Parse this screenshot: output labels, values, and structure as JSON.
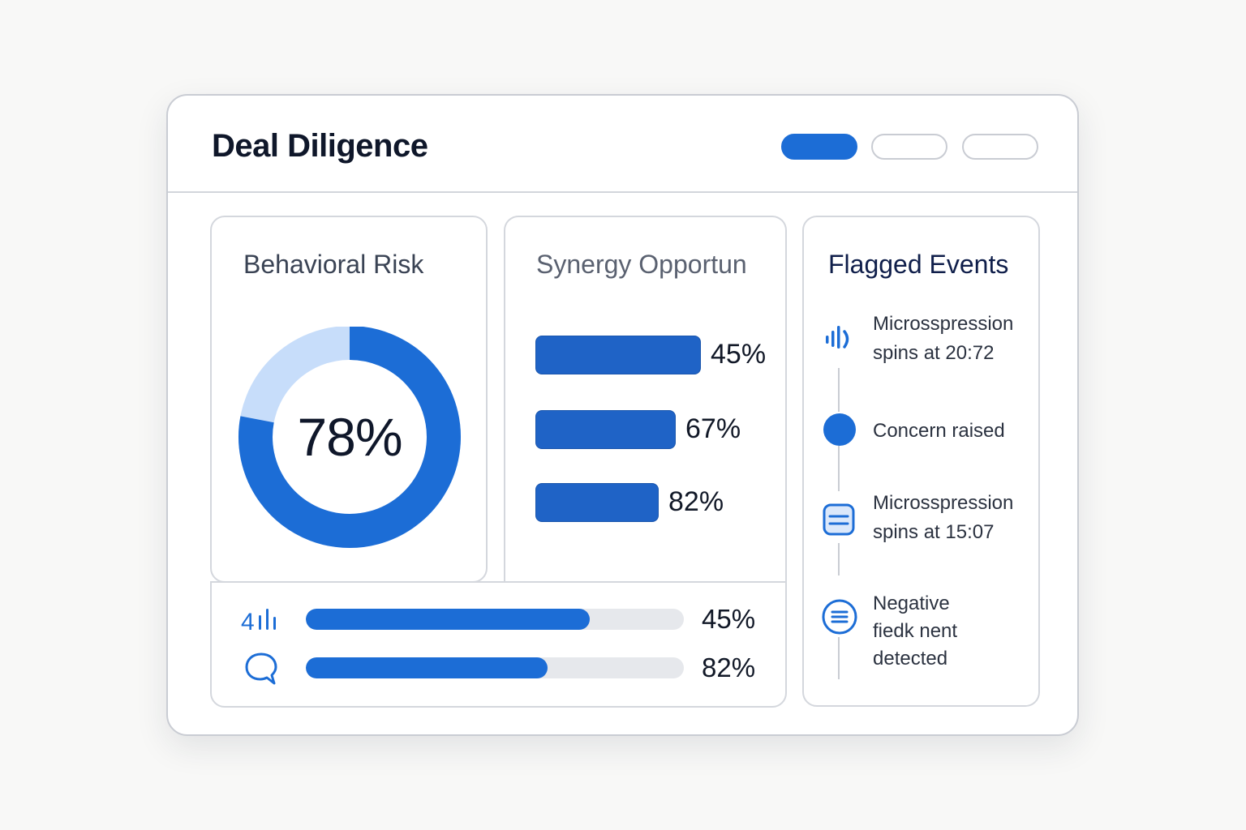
{
  "header": {
    "title": "Deal Diligence",
    "tabs": [
      {
        "state": "active"
      },
      {
        "state": "inactive"
      },
      {
        "state": "inactive"
      }
    ]
  },
  "behavioral_risk": {
    "title": "Behavioral Risk",
    "value_label": "78%",
    "value": 78,
    "colors": {
      "primary": "#1c6dd6",
      "secondary": "#c7ddfa"
    }
  },
  "synergy": {
    "title": "Synergy Opportun",
    "bars": [
      {
        "value": 45,
        "label": "45%"
      },
      {
        "value": 67,
        "label": "67%"
      },
      {
        "value": 82,
        "label": "82%"
      }
    ]
  },
  "metrics": [
    {
      "icon": "audio-level-icon",
      "icon_text": "4",
      "value": 75,
      "label": "45%"
    },
    {
      "icon": "chat-bubble-icon",
      "value": 64,
      "label": "82%"
    }
  ],
  "flagged_events": {
    "title": "Flagged Events",
    "items": [
      {
        "icon": "waveform-icon",
        "lines": [
          "Microsspression",
          "spins at 20:72"
        ]
      },
      {
        "icon": "dot-icon",
        "lines": [
          "Concern raised"
        ]
      },
      {
        "icon": "document-icon",
        "lines": [
          "Microsspression",
          "spins at 15:07"
        ]
      },
      {
        "icon": "list-circle-icon",
        "lines": [
          "Negative",
          "fiedk nent",
          "detected"
        ]
      }
    ]
  },
  "colors": {
    "accent": "#1c6dd6",
    "bar": "#1f63c6",
    "track": "#e6e8ec"
  }
}
